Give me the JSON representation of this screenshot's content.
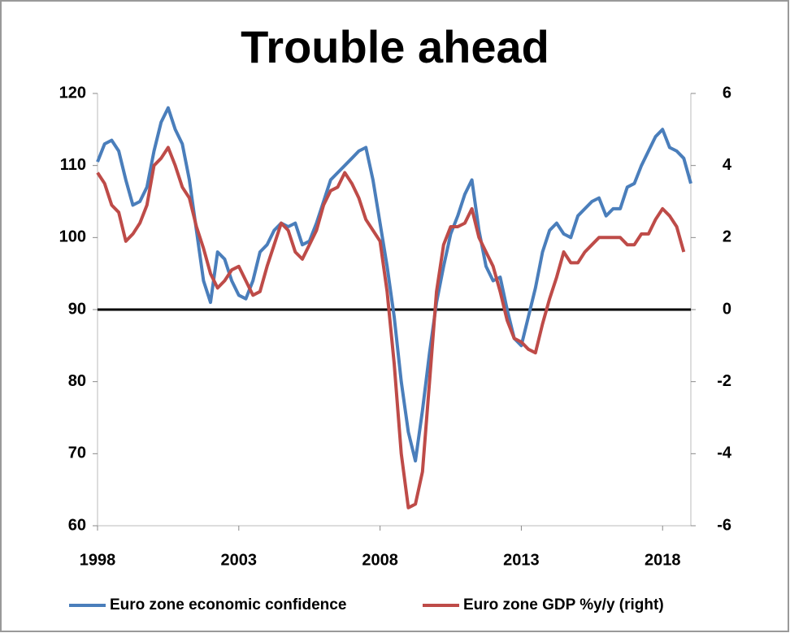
{
  "chart_data": {
    "type": "line",
    "title": "Trouble ahead",
    "x": [
      1998,
      1998.25,
      1998.5,
      1998.75,
      1999,
      1999.25,
      1999.5,
      1999.75,
      2000,
      2000.25,
      2000.5,
      2000.75,
      2001,
      2001.25,
      2001.5,
      2001.75,
      2002,
      2002.25,
      2002.5,
      2002.75,
      2003,
      2003.25,
      2003.5,
      2003.75,
      2004,
      2004.25,
      2004.5,
      2004.75,
      2005,
      2005.25,
      2005.5,
      2005.75,
      2006,
      2006.25,
      2006.5,
      2006.75,
      2007,
      2007.25,
      2007.5,
      2007.75,
      2008,
      2008.25,
      2008.5,
      2008.75,
      2009,
      2009.25,
      2009.5,
      2009.75,
      2010,
      2010.25,
      2010.5,
      2010.75,
      2011,
      2011.25,
      2011.5,
      2011.75,
      2012,
      2012.25,
      2012.5,
      2012.75,
      2013,
      2013.25,
      2013.5,
      2013.75,
      2014,
      2014.25,
      2014.5,
      2014.75,
      2015,
      2015.25,
      2015.5,
      2015.75,
      2016,
      2016.25,
      2016.5,
      2016.75,
      2017,
      2017.25,
      2017.5,
      2017.75,
      2018,
      2018.25,
      2018.5,
      2018.75,
      2019
    ],
    "series": [
      {
        "name": "Euro zone economic confidence",
        "color": "#4a7ebb",
        "axis": "y",
        "values": [
          110.5,
          113,
          113.5,
          112,
          108,
          104.5,
          105,
          107,
          112,
          116,
          118,
          115,
          113,
          108,
          101,
          94,
          91,
          98,
          97,
          94,
          92,
          91.5,
          94,
          98,
          99,
          101,
          102,
          101.5,
          102,
          99,
          99.5,
          102,
          105,
          108,
          109,
          110,
          111,
          112,
          112.5,
          108,
          102,
          96,
          89,
          80,
          73,
          69,
          76,
          84,
          91,
          96,
          100.5,
          103,
          106,
          108,
          101,
          96,
          94,
          94.5,
          90,
          86,
          85,
          89,
          93,
          98,
          101,
          102,
          100.5,
          100,
          103,
          104,
          105,
          105.5,
          103,
          104,
          104,
          107,
          107.5,
          110,
          112,
          114,
          115,
          112.5,
          112,
          111,
          107.5
        ]
      },
      {
        "name": "Euro zone GDP %y/y (right)",
        "color": "#be4b48",
        "axis": "y2",
        "values": [
          3.8,
          3.5,
          2.9,
          2.7,
          1.9,
          2.1,
          2.4,
          2.9,
          4.0,
          4.2,
          4.5,
          4.0,
          3.4,
          3.1,
          2.3,
          1.7,
          1.0,
          0.6,
          0.8,
          1.1,
          1.2,
          0.8,
          0.4,
          0.5,
          1.2,
          1.8,
          2.4,
          2.2,
          1.6,
          1.4,
          1.8,
          2.2,
          2.9,
          3.3,
          3.4,
          3.8,
          3.5,
          3.1,
          2.5,
          2.2,
          1.9,
          0.5,
          -1.5,
          -4.0,
          -5.5,
          -5.4,
          -4.5,
          -2.0,
          0.5,
          1.8,
          2.3,
          2.3,
          2.4,
          2.8,
          2.0,
          1.6,
          1.2,
          0.5,
          -0.3,
          -0.8,
          -0.9,
          -1.1,
          -1.2,
          -0.4,
          0.3,
          0.9,
          1.6,
          1.3,
          1.3,
          1.6,
          1.8,
          2.0,
          2.0,
          2.0,
          2.0,
          1.8,
          1.8,
          2.1,
          2.1,
          2.5,
          2.8,
          2.6,
          2.3,
          1.6,
          null
        ]
      }
    ],
    "xlim": [
      1998,
      2019
    ],
    "xticks": [
      1998,
      2003,
      2008,
      2013,
      2018
    ],
    "ylim": [
      60,
      120
    ],
    "yticks": [
      60,
      70,
      80,
      90,
      100,
      110,
      120
    ],
    "y2lim": [
      -6,
      6
    ],
    "y2ticks": [
      -6,
      -4,
      -2,
      0,
      2,
      4,
      6
    ],
    "reference_line": {
      "axis": "y2",
      "value": 0,
      "color": "#000000"
    },
    "grid": false,
    "legend": "bottom"
  }
}
